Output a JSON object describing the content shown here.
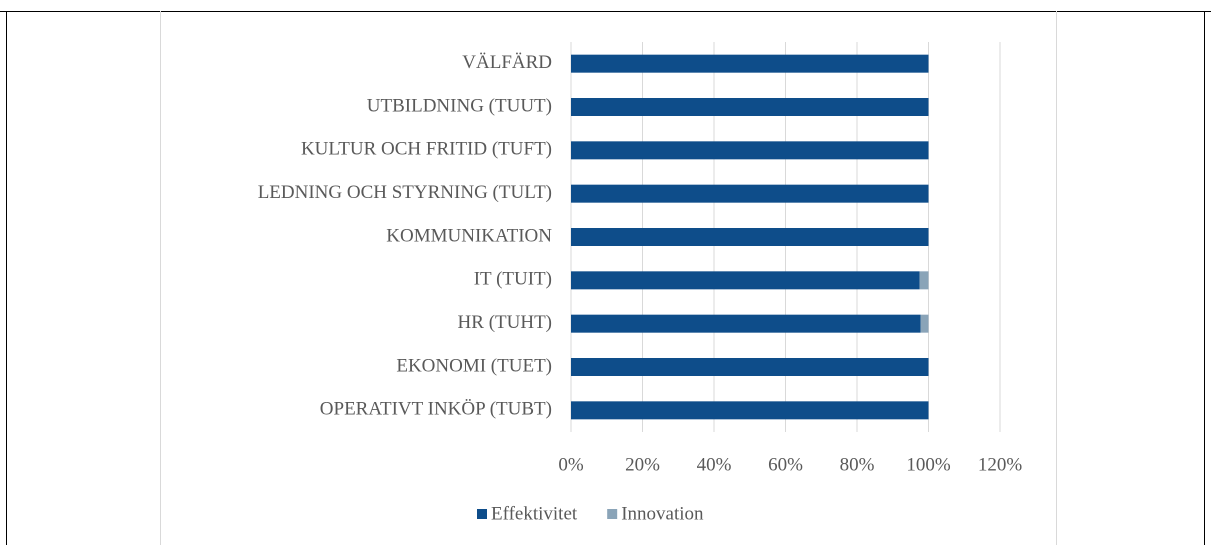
{
  "chart_data": {
    "type": "stacked_bar_horizontal",
    "categories": [
      "VÄLFÄRD",
      "UTBILDNING (TUUT)",
      "KULTUR OCH FRITID (TUFT)",
      "LEDNING OCH STYRNING (TULT)",
      "KOMMUNIKATION",
      "IT (TUIT)",
      "HR (TUHT)",
      "EKONOMI (TUET)",
      "OPERATIVT INKÖP (TUBT)"
    ],
    "series": [
      {
        "name": "Effektivitet",
        "color": "#0e4d8a",
        "values": [
          100,
          100,
          100,
          100,
          100,
          97.5,
          97.8,
          100,
          100
        ]
      },
      {
        "name": "Innovation",
        "color": "#8aa4b8",
        "values": [
          0,
          0,
          0,
          0,
          0,
          2.5,
          2.2,
          0,
          0
        ]
      }
    ],
    "xlim": [
      0,
      120
    ],
    "xticks": [
      {
        "value": 0,
        "label": "0%"
      },
      {
        "value": 20,
        "label": "20%"
      },
      {
        "value": 40,
        "label": "40%"
      },
      {
        "value": 60,
        "label": "60%"
      },
      {
        "value": 80,
        "label": "80%"
      },
      {
        "value": 100,
        "label": "100%"
      },
      {
        "value": 120,
        "label": "120%"
      }
    ],
    "grid": true,
    "legend": "bottom"
  }
}
